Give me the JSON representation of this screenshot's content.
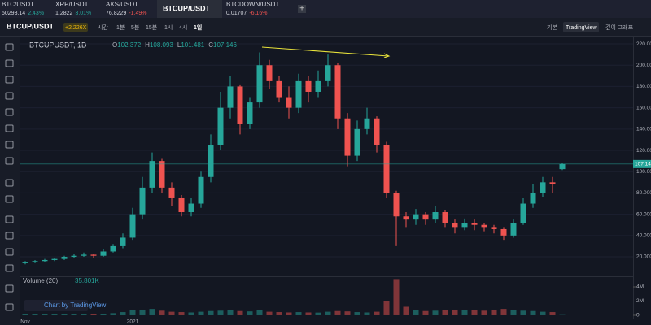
{
  "tickers": [
    {
      "name": "BTC/USDT",
      "price": "50293.14",
      "change": "2.43%"
    },
    {
      "name": "XRP/USDT",
      "price": "1.2822",
      "change": "3.01%"
    },
    {
      "name": "AXS/USDT",
      "price": "76.8229",
      "change": "-1.49%"
    },
    {
      "name": "BTCUP/USDT"
    },
    {
      "name": "BTCDOWN/USDT",
      "price": "0.01707",
      "change": "-6.16%"
    }
  ],
  "toolbar": {
    "symbol": "BTCUP/USDT",
    "leverage": "+2.226X",
    "intervals": [
      "시간",
      "1분",
      "5분",
      "15분",
      "1시",
      "4시",
      "1일"
    ],
    "views": [
      "기본",
      "TradingView",
      "깊이 그래프"
    ]
  },
  "chart_data": {
    "type": "candlestick",
    "title": "BTCUPUSDT, 1D",
    "ohlc_labels": [
      "O",
      "H",
      "L",
      "C"
    ],
    "up_color": "#26a69a",
    "down_color": "#ef5350",
    "categories": [
      "Nov",
      null,
      null,
      null,
      null,
      null,
      null,
      null,
      null,
      null,
      null,
      "2021",
      null,
      null,
      null,
      null,
      null,
      null,
      null,
      null,
      null,
      null,
      null,
      null,
      null,
      null,
      null,
      null,
      null,
      null,
      null,
      null,
      null,
      null,
      null,
      null,
      null,
      null,
      null,
      null,
      null,
      null,
      null,
      null,
      null,
      null,
      null,
      null,
      null,
      null,
      null,
      null,
      null,
      null,
      null,
      null
    ],
    "open": [
      14,
      15,
      16,
      17,
      18,
      20,
      21,
      22,
      21,
      25,
      30,
      38,
      60,
      85,
      110,
      85,
      75,
      62,
      70,
      95,
      125,
      160,
      180,
      145,
      165,
      200,
      185,
      170,
      160,
      185,
      175,
      185,
      200,
      150,
      115,
      140,
      150,
      125,
      80,
      58,
      55,
      60,
      55,
      62,
      52,
      48,
      52,
      50,
      48,
      46,
      40,
      52,
      70,
      80,
      90,
      102.372
    ],
    "high": [
      16,
      17,
      18,
      19,
      21,
      23,
      24,
      23,
      27,
      32,
      42,
      66,
      95,
      118,
      112,
      90,
      78,
      75,
      100,
      135,
      175,
      190,
      182,
      170,
      212,
      205,
      190,
      180,
      192,
      190,
      195,
      210,
      202,
      155,
      148,
      160,
      152,
      128,
      82,
      62,
      65,
      62,
      68,
      64,
      55,
      56,
      55,
      52,
      50,
      48,
      55,
      75,
      88,
      95,
      95,
      108.093
    ],
    "low": [
      13,
      14,
      15,
      16,
      17,
      19,
      20,
      19,
      20,
      24,
      28,
      36,
      55,
      80,
      80,
      68,
      58,
      58,
      66,
      90,
      120,
      150,
      135,
      140,
      160,
      178,
      165,
      150,
      155,
      165,
      170,
      180,
      140,
      105,
      110,
      135,
      118,
      75,
      30,
      48,
      50,
      50,
      52,
      48,
      42,
      45,
      45,
      44,
      42,
      36,
      38,
      50,
      66,
      76,
      80,
      101.481
    ],
    "close": [
      15,
      16,
      17,
      18,
      20,
      21,
      22,
      21,
      25,
      30,
      38,
      60,
      85,
      110,
      85,
      75,
      62,
      70,
      95,
      125,
      160,
      180,
      145,
      165,
      200,
      185,
      170,
      160,
      185,
      175,
      185,
      200,
      150,
      115,
      140,
      150,
      125,
      80,
      58,
      55,
      60,
      55,
      62,
      52,
      48,
      52,
      50,
      48,
      46,
      40,
      52,
      70,
      80,
      90,
      88,
      107.146
    ],
    "ylim": [
      1.7,
      226.9
    ],
    "yticks": [
      {
        "value": 20,
        "label": "20.000"
      },
      {
        "value": 40,
        "label": "40.000"
      },
      {
        "value": 60,
        "label": "60.000"
      },
      {
        "value": 80,
        "label": "80.000"
      },
      {
        "value": 100,
        "label": "100.000"
      },
      {
        "value": 120,
        "label": "120.000"
      },
      {
        "value": 140,
        "label": "140.000"
      },
      {
        "value": 160,
        "label": "160.000"
      },
      {
        "value": 180,
        "label": "180.000"
      },
      {
        "value": 200,
        "label": "200.000"
      },
      {
        "value": 220,
        "label": "220.000"
      }
    ],
    "volume_title": "Volume (20)",
    "volume": [
      120000,
      130000,
      150000,
      140000,
      160000,
      180000,
      170000,
      150000,
      200000,
      300000,
      450000,
      700000,
      800000,
      900000,
      650000,
      500000,
      450000,
      400000,
      500000,
      600000,
      650000,
      700000,
      600000,
      550000,
      700000,
      500000,
      450000,
      400000,
      450000,
      400000,
      380000,
      500000,
      600000,
      550000,
      450000,
      400000,
      500000,
      2000000,
      5100000,
      1200000,
      700000,
      600000,
      650000,
      700000,
      800000,
      750000,
      700000,
      650000,
      800000,
      900000,
      700000,
      650000,
      600000,
      500000,
      450000,
      35801
    ],
    "last_volume_label": "35.801K",
    "vlim": [
      -460000,
      5260000
    ],
    "vticks": [
      0,
      {
        "value": 2000000,
        "label": "2M"
      },
      {
        "value": 4000000,
        "label": "4M"
      }
    ],
    "watermark": "Chart by TradingView"
  }
}
